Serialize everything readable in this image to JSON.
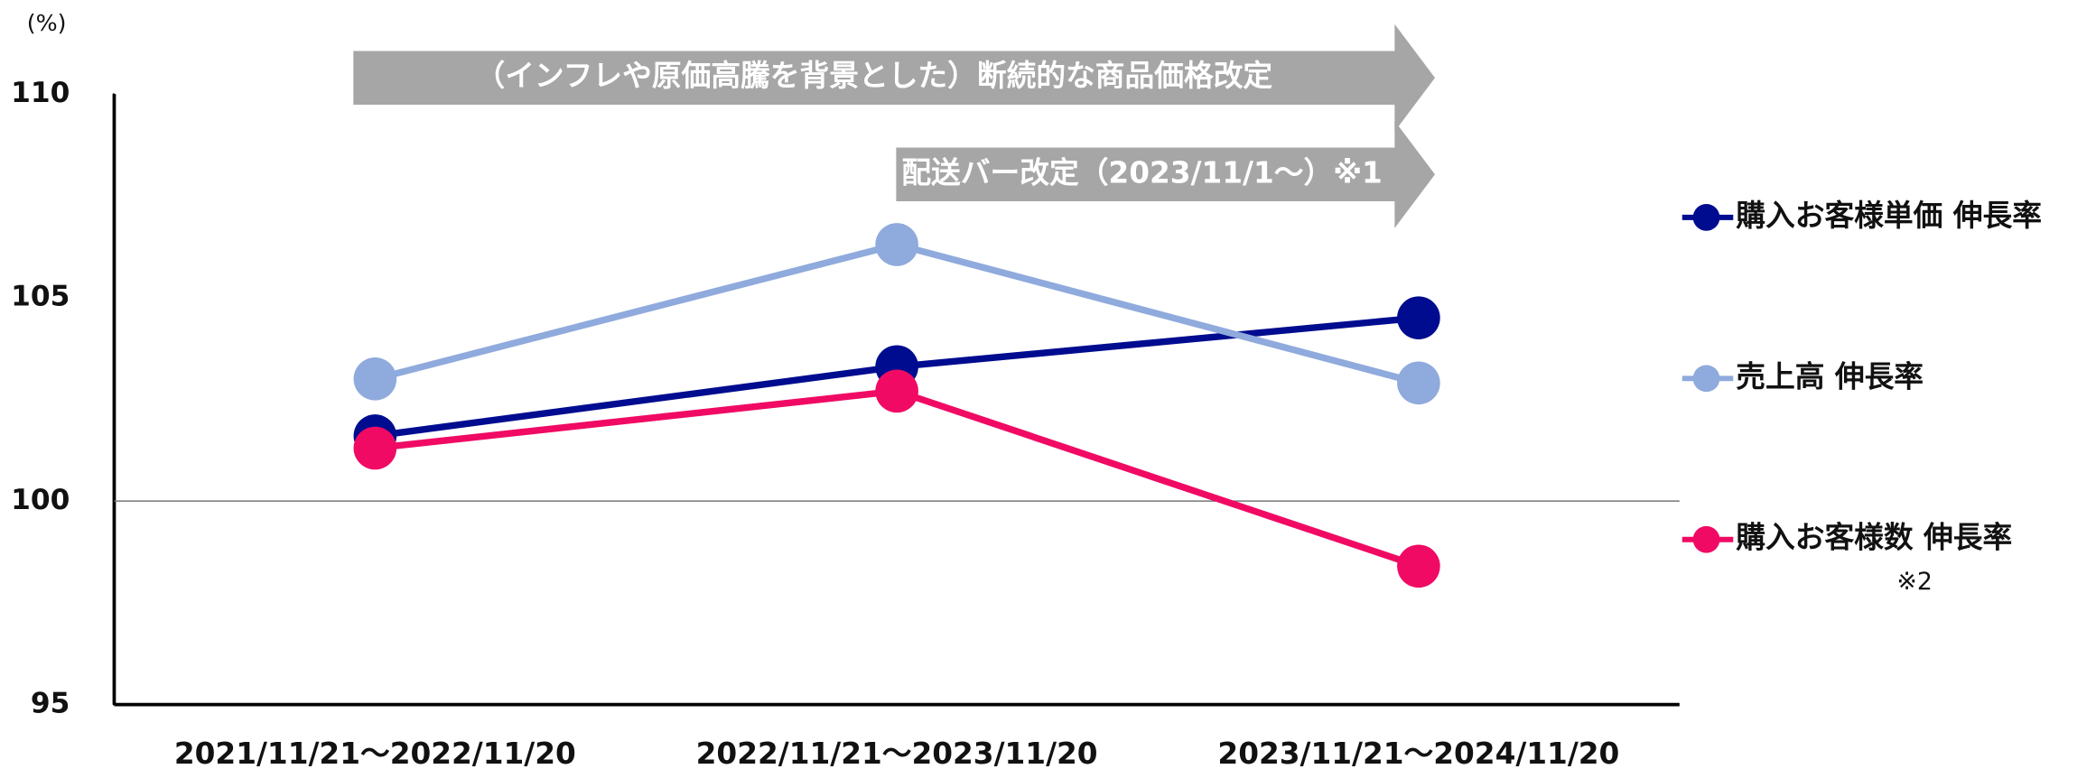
{
  "chart_data": {
    "type": "line",
    "unit_label": "(%)",
    "categories": [
      "2021/11/21～2022/11/20",
      "2022/11/21～2023/11/20",
      "2023/11/21～2024/11/20"
    ],
    "series": [
      {
        "name": "購入お客様単価 伸長率",
        "color": "#000c8f",
        "values": [
          101.6,
          103.3,
          104.5
        ]
      },
      {
        "name": "売上高 伸長率",
        "color": "#8faadc",
        "values": [
          103.0,
          106.3,
          102.9
        ]
      },
      {
        "name": "購入お客様数 伸長率",
        "color": "#f00a64",
        "values": [
          101.3,
          102.7,
          98.4
        ],
        "note": "※2"
      }
    ],
    "ylim": [
      95,
      110
    ],
    "yticks": [
      95,
      100,
      105,
      110
    ],
    "reference_line": 100,
    "annotations": [
      {
        "text": "（インフレや原価高騰を背景とした）断続的な商品価格改定",
        "from": 0,
        "to": 2
      },
      {
        "text": "配送バー改定（2023/11/1～）※1",
        "from": 1,
        "to": 2
      }
    ]
  }
}
